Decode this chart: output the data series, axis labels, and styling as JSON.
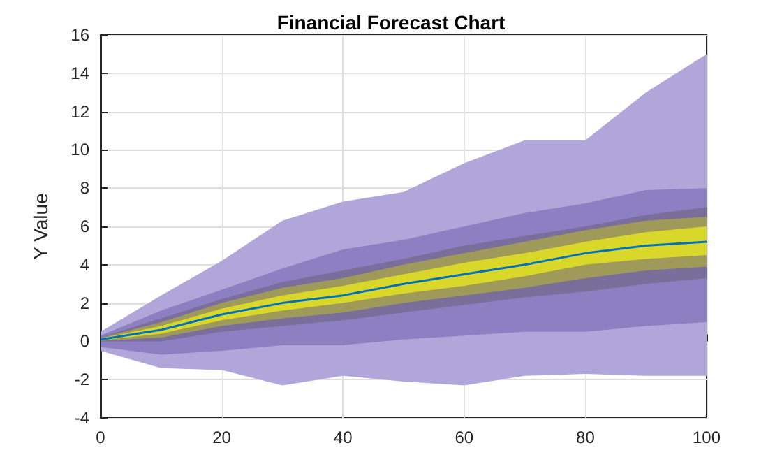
{
  "chart_data": {
    "type": "line",
    "title": "Financial Forecast Chart",
    "ylabel": "Y Value",
    "x": [
      0,
      10,
      20,
      30,
      40,
      50,
      60,
      70,
      80,
      90,
      100
    ],
    "xlim": [
      0,
      100
    ],
    "xticks": [
      0,
      20,
      40,
      60,
      80,
      100
    ],
    "ylim": [
      -4,
      16
    ],
    "yticks": [
      -4,
      -2,
      0,
      2,
      4,
      6,
      8,
      10,
      12,
      14,
      16
    ],
    "grid": true,
    "series": [
      {
        "color": "#b0a6da",
        "values": [
          null,
          null,
          null,
          null,
          null,
          null,
          null,
          null,
          null,
          null,
          null
        ],
        "lower": [
          -0.5,
          -1.4,
          -1.5,
          -2.3,
          -1.8,
          -2.1,
          -2.3,
          -1.8,
          -1.7,
          -1.8,
          -1.8
        ],
        "upper": [
          0.5,
          2.4,
          4.2,
          6.3,
          7.3,
          7.8,
          9.3,
          10.5,
          10.5,
          13.0,
          15.0
        ]
      },
      {
        "color": "#8c7fc2",
        "values": [
          null,
          null,
          null,
          null,
          null,
          null,
          null,
          null,
          null,
          null,
          null
        ],
        "lower": [
          -0.3,
          -0.7,
          -0.5,
          -0.2,
          -0.2,
          0.1,
          0.3,
          0.5,
          0.5,
          0.8,
          1.0
        ],
        "upper": [
          0.3,
          1.6,
          2.7,
          3.8,
          4.8,
          5.3,
          6.0,
          6.7,
          7.2,
          7.9,
          8.0
        ]
      },
      {
        "color": "#7a6f9a",
        "values": [
          null,
          null,
          null,
          null,
          null,
          null,
          null,
          null,
          null,
          null,
          null
        ],
        "lower": [
          0,
          0,
          0.5,
          0.8,
          1.1,
          1.5,
          1.9,
          2.3,
          2.6,
          3.0,
          3.3
        ],
        "upper": [
          0.2,
          1.2,
          2.2,
          3.1,
          3.7,
          4.3,
          5.0,
          5.5,
          6.0,
          6.6,
          7.0
        ]
      },
      {
        "color": "#a09a5a",
        "values": [
          null,
          null,
          null,
          null,
          null,
          null,
          null,
          null,
          null,
          null,
          null
        ],
        "lower": [
          0.02,
          0.2,
          0.8,
          1.2,
          1.5,
          2.0,
          2.4,
          2.8,
          3.3,
          3.7,
          3.9
        ],
        "upper": [
          0.18,
          1.0,
          2.0,
          2.8,
          3.3,
          4.0,
          4.6,
          5.2,
          5.8,
          6.3,
          6.5
        ]
      },
      {
        "color": "#0072bd",
        "values": [
          0.1,
          0.6,
          1.4,
          2.0,
          2.4,
          3.0,
          3.5,
          4.0,
          4.6,
          5.0,
          5.2
        ],
        "lower": [
          0.05,
          0.4,
          1.1,
          1.6,
          2.0,
          2.5,
          2.9,
          3.4,
          4.0,
          4.3,
          4.5
        ],
        "upper": [
          0.15,
          0.8,
          1.7,
          2.4,
          2.9,
          3.5,
          4.1,
          4.6,
          5.2,
          5.7,
          6.0
        ]
      }
    ]
  }
}
